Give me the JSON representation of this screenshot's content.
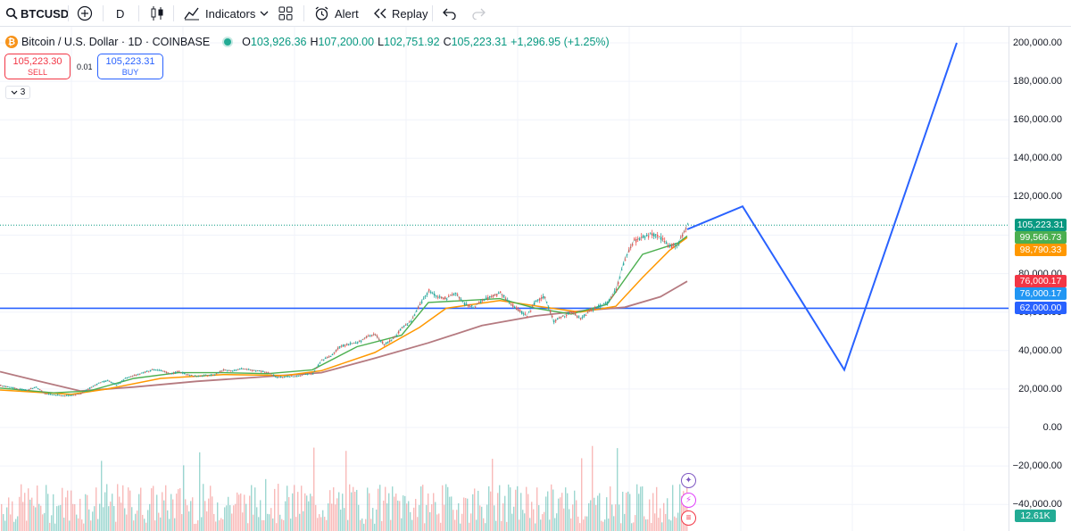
{
  "toolbar": {
    "symbol": "BTCUSD",
    "interval": "D",
    "indicators_label": "Indicators",
    "alert_label": "Alert",
    "replay_label": "Replay",
    "icons": [
      "search-icon",
      "plus-circle-icon",
      "candles-icon",
      "indicators-icon",
      "chevron-down-icon",
      "layouts-icon",
      "alarm-icon",
      "replay-icon",
      "undo-icon",
      "redo-icon"
    ]
  },
  "legend": {
    "title": "Bitcoin / U.S. Dollar · 1D · COINBASE",
    "open_label": "O",
    "open": "103,926.36",
    "high_label": "H",
    "high": "107,200.00",
    "low_label": "L",
    "low": "102,751.92",
    "close_label": "C",
    "close": "105,223.31",
    "change": "+1,296.95 (+1.25%)",
    "collapse_count": "3"
  },
  "trade": {
    "sell_price": "105,223.30",
    "sell_label": "SELL",
    "spread": "0.01",
    "buy_price": "105,223.31",
    "buy_label": "BUY"
  },
  "price_scale": {
    "ticks": [
      "200,000.00",
      "180,000.00",
      "160,000.00",
      "140,000.00",
      "120,000.00",
      "80,000.00",
      "60,000.00",
      "40,000.00",
      "20,000.00",
      "0.00",
      "−20,000.00",
      "−40,000.00"
    ],
    "tick_values": [
      200000,
      180000,
      160000,
      140000,
      120000,
      80000,
      60000,
      40000,
      20000,
      0,
      -20000,
      -40000
    ],
    "labels": [
      {
        "text": "105,223.31",
        "value": 105223.31,
        "color": "#089981"
      },
      {
        "text": "99,566.73",
        "value": 99566.73,
        "color": "#4caf50"
      },
      {
        "text": "98,790.33",
        "value": 98790.33,
        "color": "#ff9800"
      },
      {
        "text": "76,000.17",
        "value": 76000.17,
        "color": "#f23645"
      },
      {
        "text": "76,000.17",
        "value": 76000.17,
        "color": "#2196f3"
      },
      {
        "text": "62,000.00",
        "value": 62000,
        "color": "#2962ff"
      }
    ],
    "volume_label": "12.61K",
    "volume_color": "#22ab94"
  },
  "chart_data": {
    "type": "line",
    "symbol": "BTCUSD",
    "timeframe": "1D",
    "price_series": [
      {
        "i": 0,
        "v": 22000
      },
      {
        "i": 10,
        "v": 21000
      },
      {
        "i": 20,
        "v": 20000
      },
      {
        "i": 30,
        "v": 19500
      },
      {
        "i": 40,
        "v": 21000
      },
      {
        "i": 50,
        "v": 17500
      },
      {
        "i": 60,
        "v": 17000
      },
      {
        "i": 70,
        "v": 16500
      },
      {
        "i": 80,
        "v": 16800
      },
      {
        "i": 90,
        "v": 17500
      },
      {
        "i": 100,
        "v": 20500
      },
      {
        "i": 110,
        "v": 23000
      },
      {
        "i": 120,
        "v": 24500
      },
      {
        "i": 130,
        "v": 22000
      },
      {
        "i": 140,
        "v": 25500
      },
      {
        "i": 150,
        "v": 27000
      },
      {
        "i": 160,
        "v": 28500
      },
      {
        "i": 170,
        "v": 30000
      },
      {
        "i": 180,
        "v": 29500
      },
      {
        "i": 190,
        "v": 28000
      },
      {
        "i": 200,
        "v": 29000
      },
      {
        "i": 210,
        "v": 27500
      },
      {
        "i": 220,
        "v": 26500
      },
      {
        "i": 230,
        "v": 27000
      },
      {
        "i": 240,
        "v": 27500
      },
      {
        "i": 250,
        "v": 30000
      },
      {
        "i": 260,
        "v": 29500
      },
      {
        "i": 270,
        "v": 30500
      },
      {
        "i": 280,
        "v": 30000
      },
      {
        "i": 290,
        "v": 29500
      },
      {
        "i": 300,
        "v": 28500
      },
      {
        "i": 310,
        "v": 26000
      },
      {
        "i": 320,
        "v": 26500
      },
      {
        "i": 330,
        "v": 26500
      },
      {
        "i": 340,
        "v": 27500
      },
      {
        "i": 350,
        "v": 28000
      },
      {
        "i": 360,
        "v": 35000
      },
      {
        "i": 370,
        "v": 37000
      },
      {
        "i": 380,
        "v": 42000
      },
      {
        "i": 390,
        "v": 43500
      },
      {
        "i": 400,
        "v": 44000
      },
      {
        "i": 410,
        "v": 47000
      },
      {
        "i": 420,
        "v": 48500
      },
      {
        "i": 430,
        "v": 43000
      },
      {
        "i": 440,
        "v": 46000
      },
      {
        "i": 450,
        "v": 52000
      },
      {
        "i": 460,
        "v": 55000
      },
      {
        "i": 470,
        "v": 64000
      },
      {
        "i": 480,
        "v": 71000
      },
      {
        "i": 490,
        "v": 68000
      },
      {
        "i": 500,
        "v": 67000
      },
      {
        "i": 510,
        "v": 70000
      },
      {
        "i": 520,
        "v": 64000
      },
      {
        "i": 530,
        "v": 62500
      },
      {
        "i": 540,
        "v": 66000
      },
      {
        "i": 550,
        "v": 68000
      },
      {
        "i": 560,
        "v": 70000
      },
      {
        "i": 570,
        "v": 65000
      },
      {
        "i": 580,
        "v": 61000
      },
      {
        "i": 590,
        "v": 58000
      },
      {
        "i": 600,
        "v": 66000
      },
      {
        "i": 610,
        "v": 68000
      },
      {
        "i": 620,
        "v": 55000
      },
      {
        "i": 630,
        "v": 58000
      },
      {
        "i": 640,
        "v": 60000
      },
      {
        "i": 650,
        "v": 56500
      },
      {
        "i": 660,
        "v": 60500
      },
      {
        "i": 670,
        "v": 63000
      },
      {
        "i": 680,
        "v": 65000
      },
      {
        "i": 690,
        "v": 72000
      },
      {
        "i": 700,
        "v": 88000
      },
      {
        "i": 710,
        "v": 97000
      },
      {
        "i": 720,
        "v": 99000
      },
      {
        "i": 730,
        "v": 100500
      },
      {
        "i": 740,
        "v": 98000
      },
      {
        "i": 750,
        "v": 94000
      },
      {
        "i": 760,
        "v": 96000
      },
      {
        "i": 770,
        "v": 105223
      }
    ],
    "ma_fast": [
      {
        "i": 0,
        "v": 20500
      },
      {
        "i": 60,
        "v": 18000
      },
      {
        "i": 100,
        "v": 19000
      },
      {
        "i": 150,
        "v": 25500
      },
      {
        "i": 200,
        "v": 28500
      },
      {
        "i": 250,
        "v": 28500
      },
      {
        "i": 300,
        "v": 28000
      },
      {
        "i": 350,
        "v": 30000
      },
      {
        "i": 400,
        "v": 42000
      },
      {
        "i": 450,
        "v": 48000
      },
      {
        "i": 480,
        "v": 65000
      },
      {
        "i": 520,
        "v": 66000
      },
      {
        "i": 560,
        "v": 67000
      },
      {
        "i": 600,
        "v": 62000
      },
      {
        "i": 640,
        "v": 59000
      },
      {
        "i": 680,
        "v": 64000
      },
      {
        "i": 720,
        "v": 90000
      },
      {
        "i": 760,
        "v": 96000
      },
      {
        "i": 770,
        "v": 99567
      }
    ],
    "ma_mid": [
      {
        "i": 0,
        "v": 19500
      },
      {
        "i": 80,
        "v": 17200
      },
      {
        "i": 120,
        "v": 20000
      },
      {
        "i": 180,
        "v": 25500
      },
      {
        "i": 250,
        "v": 27500
      },
      {
        "i": 320,
        "v": 27000
      },
      {
        "i": 360,
        "v": 29500
      },
      {
        "i": 420,
        "v": 39000
      },
      {
        "i": 470,
        "v": 52000
      },
      {
        "i": 500,
        "v": 62000
      },
      {
        "i": 560,
        "v": 66000
      },
      {
        "i": 610,
        "v": 62500
      },
      {
        "i": 650,
        "v": 60000
      },
      {
        "i": 690,
        "v": 63000
      },
      {
        "i": 720,
        "v": 78000
      },
      {
        "i": 750,
        "v": 92000
      },
      {
        "i": 770,
        "v": 98790
      }
    ],
    "ma_slow": [
      {
        "i": 0,
        "v": 29000
      },
      {
        "i": 40,
        "v": 24500
      },
      {
        "i": 90,
        "v": 19000
      },
      {
        "i": 150,
        "v": 21000
      },
      {
        "i": 220,
        "v": 24000
      },
      {
        "i": 300,
        "v": 26500
      },
      {
        "i": 360,
        "v": 28500
      },
      {
        "i": 420,
        "v": 36000
      },
      {
        "i": 480,
        "v": 44000
      },
      {
        "i": 540,
        "v": 53000
      },
      {
        "i": 600,
        "v": 58000
      },
      {
        "i": 660,
        "v": 61000
      },
      {
        "i": 700,
        "v": 62500
      },
      {
        "i": 740,
        "v": 68000
      },
      {
        "i": 770,
        "v": 76000
      }
    ],
    "projection": [
      {
        "i": 770,
        "v": 103000
      },
      {
        "i": 832,
        "v": 115000
      },
      {
        "i": 946,
        "v": 30000
      },
      {
        "i": 1072,
        "v": 200000
      }
    ],
    "horizontal_line": 62000,
    "last_price": 105223.31,
    "ylim": [
      -40000,
      200000
    ],
    "colors": {
      "price": "#26a69a",
      "ma_fast": "#4caf50",
      "ma_mid": "#ff9800",
      "ma_slow": "#b57a80",
      "projection": "#2962ff",
      "hline": "#2962ff",
      "last_price": "#089981"
    }
  }
}
